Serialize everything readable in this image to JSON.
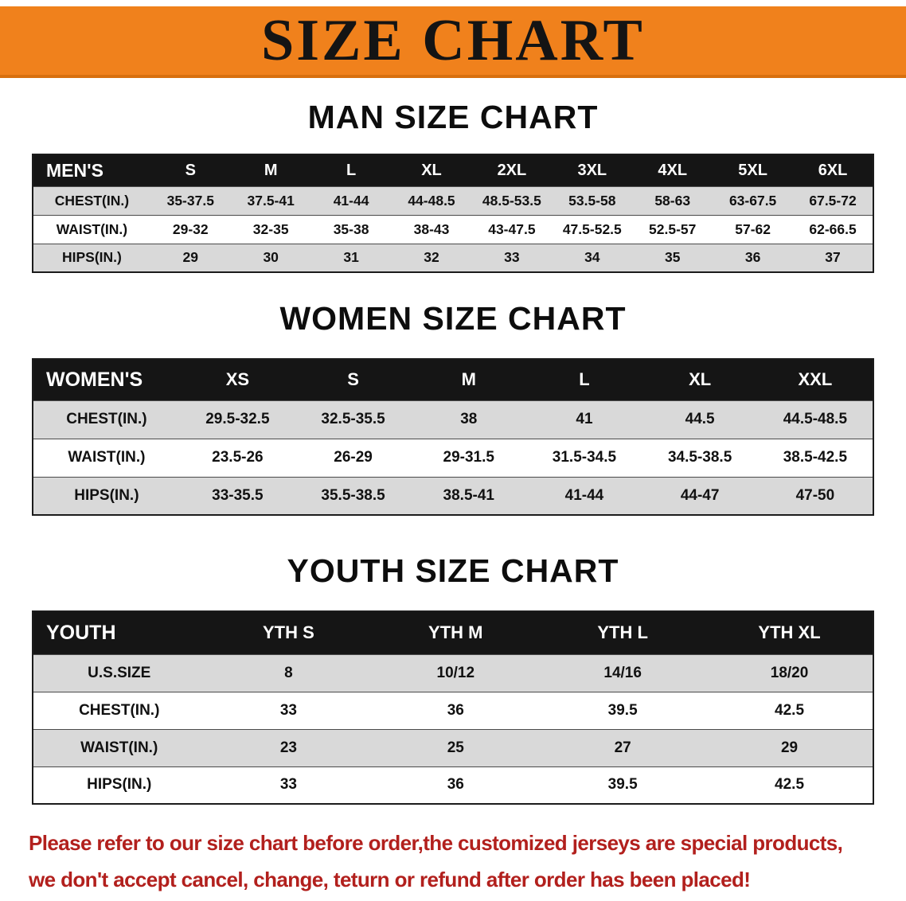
{
  "banner": {
    "title": "SIZE CHART"
  },
  "colors": {
    "banner_bg": "#F0811C",
    "banner_edge": "#D8700E",
    "header_bg": "#151515",
    "stripe": "#D9D9D9",
    "accent_red": "#B2201D"
  },
  "sections": [
    {
      "heading": "MAN SIZE CHART",
      "table": {
        "header": [
          "MEN'S",
          "S",
          "M",
          "L",
          "XL",
          "2XL",
          "3XL",
          "4XL",
          "5XL",
          "6XL"
        ],
        "rows": [
          [
            "CHEST(IN.)",
            "35-37.5",
            "37.5-41",
            "41-44",
            "44-48.5",
            "48.5-53.5",
            "53.5-58",
            "58-63",
            "63-67.5",
            "67.5-72"
          ],
          [
            "WAIST(IN.)",
            "29-32",
            "32-35",
            "35-38",
            "38-43",
            "43-47.5",
            "47.5-52.5",
            "52.5-57",
            "57-62",
            "62-66.5"
          ],
          [
            "HIPS(IN.)",
            "29",
            "30",
            "31",
            "32",
            "33",
            "34",
            "35",
            "36",
            "37"
          ]
        ]
      }
    },
    {
      "heading": "WOMEN SIZE CHART",
      "table": {
        "header": [
          "WOMEN'S",
          "XS",
          "S",
          "M",
          "L",
          "XL",
          "XXL"
        ],
        "rows": [
          [
            "CHEST(IN.)",
            "29.5-32.5",
            "32.5-35.5",
            "38",
            "41",
            "44.5",
            "44.5-48.5"
          ],
          [
            "WAIST(IN.)",
            "23.5-26",
            "26-29",
            "29-31.5",
            "31.5-34.5",
            "34.5-38.5",
            "38.5-42.5"
          ],
          [
            "HIPS(IN.)",
            "33-35.5",
            "35.5-38.5",
            "38.5-41",
            "41-44",
            "44-47",
            "47-50"
          ]
        ]
      }
    },
    {
      "heading": "YOUTH SIZE CHART",
      "table": {
        "header": [
          "YOUTH",
          "YTH S",
          "YTH M",
          "YTH L",
          "YTH XL"
        ],
        "rows": [
          [
            "U.S.SIZE",
            "8",
            "10/12",
            "14/16",
            "18/20"
          ],
          [
            "CHEST(IN.)",
            "33",
            "36",
            "39.5",
            "42.5"
          ],
          [
            "WAIST(IN.)",
            "23",
            "25",
            "27",
            "29"
          ],
          [
            "HIPS(IN.)",
            "33",
            "36",
            "39.5",
            "42.5"
          ]
        ]
      }
    }
  ],
  "disclaimer": {
    "line1": "Please refer to our size chart before order,the customized jerseys are special products,",
    "line2": "we don't accept cancel, change, teturn or refund after order has been placed!"
  }
}
